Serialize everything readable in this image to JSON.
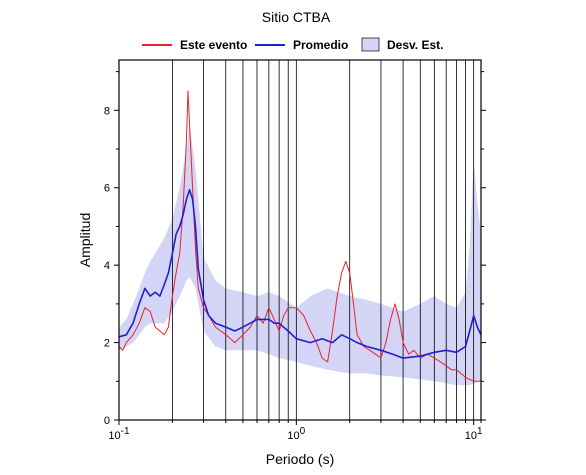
{
  "chart_data": {
    "type": "line",
    "title": "Sitio CTBA",
    "xlabel": "Periodo (s)",
    "ylabel": "Amplitud",
    "x_scale": "log",
    "xlim": [
      0.1,
      11
    ],
    "ylim": [
      0,
      9.3
    ],
    "x_ticks": [
      {
        "value": 0.1,
        "base": "10",
        "exp": "-1"
      },
      {
        "value": 1,
        "base": "10",
        "exp": "0"
      },
      {
        "value": 10,
        "base": "10",
        "exp": "1"
      }
    ],
    "y_ticks": [
      0,
      2,
      4,
      6,
      8
    ],
    "grid": "vertical lines at decade multiples",
    "legend": {
      "position": "top",
      "entries": [
        {
          "label": "Este evento",
          "color": "#e8222a",
          "kind": "line"
        },
        {
          "label": "Promedio",
          "color": "#1f1fd6",
          "kind": "line"
        },
        {
          "label": "Desv. Est.",
          "color": "#d4d4f7",
          "kind": "band"
        }
      ]
    },
    "series": [
      {
        "name": "Este evento",
        "color": "#e8222a",
        "points": [
          [
            0.1,
            1.9
          ],
          [
            0.105,
            1.8
          ],
          [
            0.11,
            2.0
          ],
          [
            0.12,
            2.2
          ],
          [
            0.13,
            2.5
          ],
          [
            0.14,
            2.9
          ],
          [
            0.15,
            2.8
          ],
          [
            0.16,
            2.4
          ],
          [
            0.17,
            2.3
          ],
          [
            0.18,
            2.2
          ],
          [
            0.19,
            2.4
          ],
          [
            0.2,
            3.2
          ],
          [
            0.21,
            3.8
          ],
          [
            0.22,
            4.3
          ],
          [
            0.23,
            5.5
          ],
          [
            0.24,
            7.2
          ],
          [
            0.245,
            8.5
          ],
          [
            0.25,
            7.6
          ],
          [
            0.26,
            6.0
          ],
          [
            0.27,
            4.4
          ],
          [
            0.28,
            3.4
          ],
          [
            0.3,
            2.9
          ],
          [
            0.32,
            2.7
          ],
          [
            0.35,
            2.4
          ],
          [
            0.4,
            2.2
          ],
          [
            0.45,
            2.0
          ],
          [
            0.5,
            2.2
          ],
          [
            0.55,
            2.4
          ],
          [
            0.6,
            2.7
          ],
          [
            0.65,
            2.5
          ],
          [
            0.7,
            2.9
          ],
          [
            0.75,
            2.6
          ],
          [
            0.8,
            2.3
          ],
          [
            0.85,
            2.7
          ],
          [
            0.9,
            2.9
          ],
          [
            1.0,
            2.9
          ],
          [
            1.1,
            2.7
          ],
          [
            1.2,
            2.3
          ],
          [
            1.3,
            2.0
          ],
          [
            1.4,
            1.6
          ],
          [
            1.5,
            1.5
          ],
          [
            1.6,
            2.3
          ],
          [
            1.7,
            3.2
          ],
          [
            1.8,
            3.8
          ],
          [
            1.9,
            4.1
          ],
          [
            2.0,
            3.8
          ],
          [
            2.1,
            3.0
          ],
          [
            2.2,
            2.2
          ],
          [
            2.4,
            1.9
          ],
          [
            2.6,
            1.8
          ],
          [
            2.8,
            1.7
          ],
          [
            3.0,
            1.6
          ],
          [
            3.2,
            2.0
          ],
          [
            3.4,
            2.6
          ],
          [
            3.6,
            3.0
          ],
          [
            3.8,
            2.6
          ],
          [
            4.0,
            2.0
          ],
          [
            4.3,
            1.7
          ],
          [
            4.6,
            1.8
          ],
          [
            5.0,
            1.6
          ],
          [
            5.5,
            1.7
          ],
          [
            6.0,
            1.6
          ],
          [
            6.5,
            1.5
          ],
          [
            7.0,
            1.4
          ],
          [
            7.5,
            1.3
          ],
          [
            8.0,
            1.3
          ],
          [
            8.5,
            1.2
          ],
          [
            9.0,
            1.1
          ],
          [
            10.0,
            1.0
          ],
          [
            11.0,
            1.0
          ]
        ]
      },
      {
        "name": "Promedio",
        "color": "#1f1fd6",
        "points": [
          [
            0.1,
            2.15
          ],
          [
            0.11,
            2.2
          ],
          [
            0.12,
            2.5
          ],
          [
            0.13,
            3.0
          ],
          [
            0.14,
            3.4
          ],
          [
            0.15,
            3.2
          ],
          [
            0.16,
            3.3
          ],
          [
            0.17,
            3.2
          ],
          [
            0.18,
            3.5
          ],
          [
            0.19,
            3.8
          ],
          [
            0.2,
            4.3
          ],
          [
            0.21,
            4.8
          ],
          [
            0.22,
            5.0
          ],
          [
            0.23,
            5.3
          ],
          [
            0.24,
            5.7
          ],
          [
            0.25,
            5.95
          ],
          [
            0.26,
            5.7
          ],
          [
            0.27,
            5.0
          ],
          [
            0.28,
            3.9
          ],
          [
            0.3,
            3.1
          ],
          [
            0.32,
            2.7
          ],
          [
            0.35,
            2.5
          ],
          [
            0.4,
            2.4
          ],
          [
            0.45,
            2.3
          ],
          [
            0.5,
            2.4
          ],
          [
            0.55,
            2.5
          ],
          [
            0.6,
            2.6
          ],
          [
            0.65,
            2.6
          ],
          [
            0.7,
            2.6
          ],
          [
            0.75,
            2.5
          ],
          [
            0.8,
            2.5
          ],
          [
            0.9,
            2.3
          ],
          [
            1.0,
            2.1
          ],
          [
            1.2,
            2.0
          ],
          [
            1.4,
            2.1
          ],
          [
            1.6,
            2.0
          ],
          [
            1.8,
            2.2
          ],
          [
            2.0,
            2.1
          ],
          [
            2.2,
            2.0
          ],
          [
            2.5,
            1.9
          ],
          [
            3.0,
            1.8
          ],
          [
            3.5,
            1.7
          ],
          [
            4.0,
            1.6
          ],
          [
            5.0,
            1.65
          ],
          [
            6.0,
            1.75
          ],
          [
            7.0,
            1.8
          ],
          [
            8.0,
            1.75
          ],
          [
            9.0,
            1.9
          ],
          [
            9.5,
            2.3
          ],
          [
            10.0,
            2.7
          ],
          [
            10.5,
            2.4
          ],
          [
            11.0,
            2.2
          ]
        ]
      }
    ],
    "band": {
      "name": "Desv. Est.",
      "color": "#d4d4f7",
      "x": [
        0.1,
        0.11,
        0.12,
        0.13,
        0.14,
        0.15,
        0.16,
        0.18,
        0.2,
        0.22,
        0.24,
        0.25,
        0.27,
        0.3,
        0.35,
        0.4,
        0.5,
        0.6,
        0.7,
        0.8,
        1.0,
        1.2,
        1.5,
        2.0,
        2.5,
        3.0,
        4.0,
        5.0,
        6.0,
        7.0,
        8.0,
        9.0,
        9.5,
        10.0,
        10.5,
        11.0
      ],
      "upper": [
        2.4,
        2.6,
        3.0,
        3.4,
        3.8,
        4.1,
        4.3,
        4.7,
        5.2,
        6.0,
        7.0,
        7.6,
        6.5,
        4.2,
        3.6,
        3.4,
        3.3,
        3.2,
        3.3,
        3.2,
        2.9,
        3.2,
        3.4,
        3.2,
        3.1,
        3.0,
        2.8,
        3.0,
        3.2,
        3.0,
        2.9,
        3.3,
        4.5,
        6.7,
        5.6,
        4.8
      ],
      "lower": [
        1.8,
        1.9,
        2.0,
        2.2,
        2.4,
        2.5,
        2.5,
        2.5,
        2.8,
        3.2,
        3.6,
        3.7,
        3.4,
        2.3,
        1.9,
        1.8,
        1.8,
        1.8,
        1.7,
        1.6,
        1.5,
        1.4,
        1.3,
        1.2,
        1.2,
        1.15,
        1.1,
        1.05,
        1.0,
        0.95,
        0.9,
        0.9,
        0.9,
        0.95,
        1.0,
        1.0
      ]
    }
  }
}
